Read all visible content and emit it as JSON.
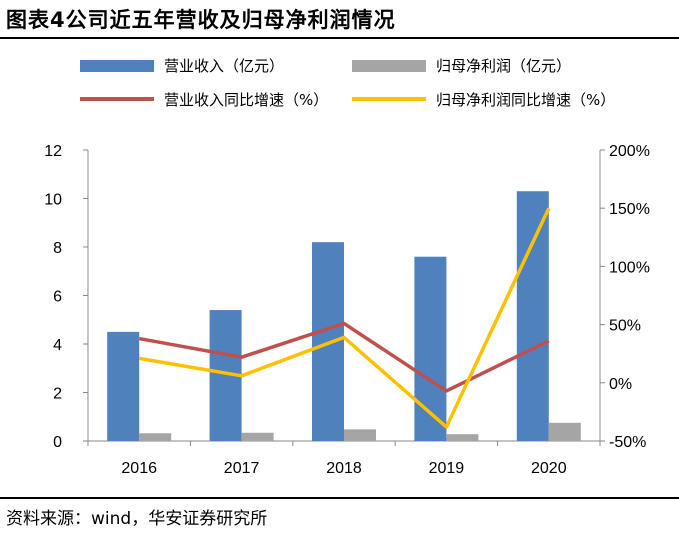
{
  "title": "图表4公司近五年营收及归母净利润情况",
  "source": "资料来源：wind，华安证券研究所",
  "chart_data": {
    "type": "bar",
    "categories": [
      "2016",
      "2017",
      "2018",
      "2019",
      "2020"
    ],
    "series": [
      {
        "name": "营业收入（亿元）",
        "type": "bar",
        "axis": "left",
        "color": "#4F81BD",
        "values": [
          4.5,
          5.4,
          8.2,
          7.6,
          10.3
        ]
      },
      {
        "name": "归母净利润（亿元）",
        "type": "bar",
        "axis": "left",
        "color": "#A5A5A5",
        "values": [
          0.32,
          0.34,
          0.48,
          0.28,
          0.75
        ]
      },
      {
        "name": "营业收入同比增速（%）",
        "type": "line",
        "axis": "right",
        "color": "#C0504D",
        "values": [
          38,
          22,
          51,
          -7,
          36
        ]
      },
      {
        "name": "归母净利润同比增速（%）",
        "type": "line",
        "axis": "right",
        "color": "#FFC000",
        "values": [
          21,
          6,
          39,
          -38,
          150
        ]
      }
    ],
    "y_left": {
      "min": 0,
      "max": 12,
      "ticks": [
        "0",
        "2",
        "4",
        "6",
        "8",
        "10",
        "12"
      ]
    },
    "y_right": {
      "min": -50,
      "max": 200,
      "ticks": [
        "-50%",
        "0%",
        "50%",
        "100%",
        "150%",
        "200%"
      ]
    },
    "grid": false,
    "legend_position": "top"
  }
}
